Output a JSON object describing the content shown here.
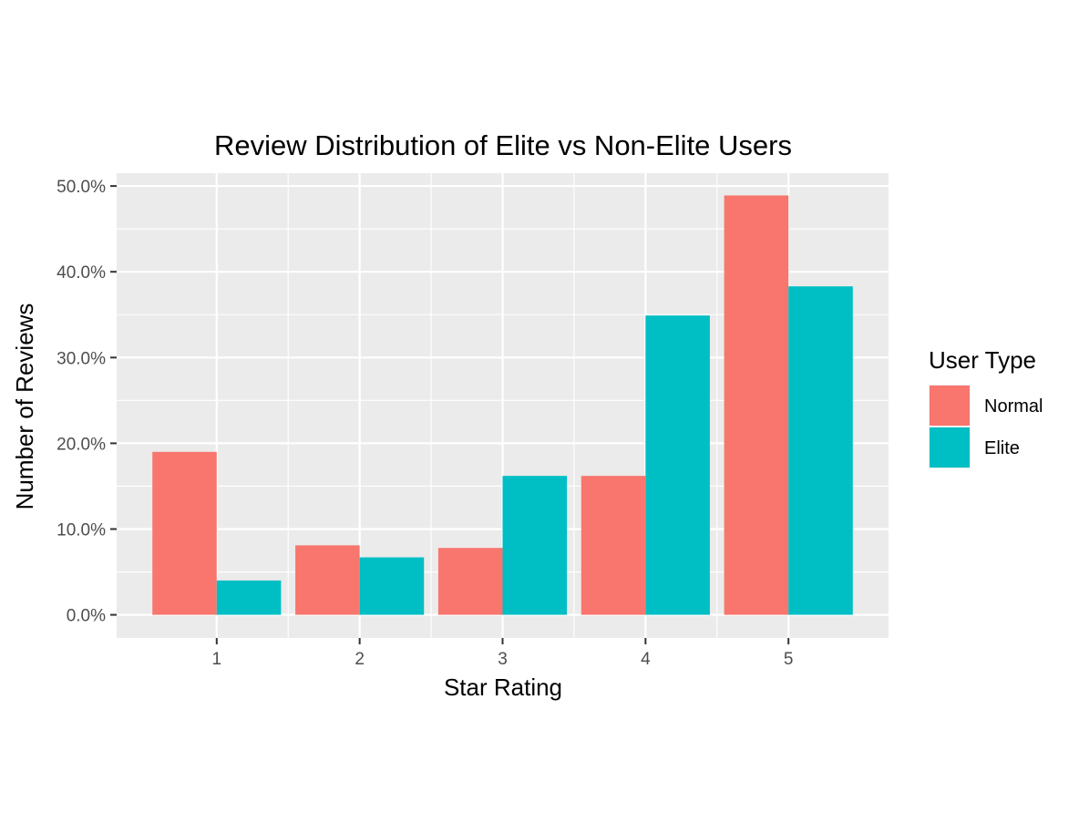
{
  "chart_data": {
    "type": "bar",
    "title": "Review Distribution of Elite vs Non-Elite Users",
    "xlabel": "Star Rating",
    "ylabel": "Number of Reviews",
    "categories": [
      "1",
      "2",
      "3",
      "4",
      "5"
    ],
    "series": [
      {
        "name": "Normal",
        "values": [
          0.19,
          0.081,
          0.078,
          0.162,
          0.489
        ],
        "color": "#F8766D"
      },
      {
        "name": "Elite",
        "values": [
          0.04,
          0.067,
          0.162,
          0.349,
          0.383
        ],
        "color": "#00BFC4"
      }
    ],
    "ylim": [
      -0.027,
      0.515
    ],
    "y_ticks": [
      0,
      0.1,
      0.2,
      0.3,
      0.4,
      0.5
    ],
    "y_tick_labels": [
      "0.0%",
      "10.0%",
      "20.0%",
      "30.0%",
      "40.0%",
      "50.0%"
    ],
    "grid": true,
    "legend": {
      "title": "User Type",
      "position": "right"
    },
    "panel_color": "#EBEBEB",
    "grid_color": "#FFFFFF"
  }
}
